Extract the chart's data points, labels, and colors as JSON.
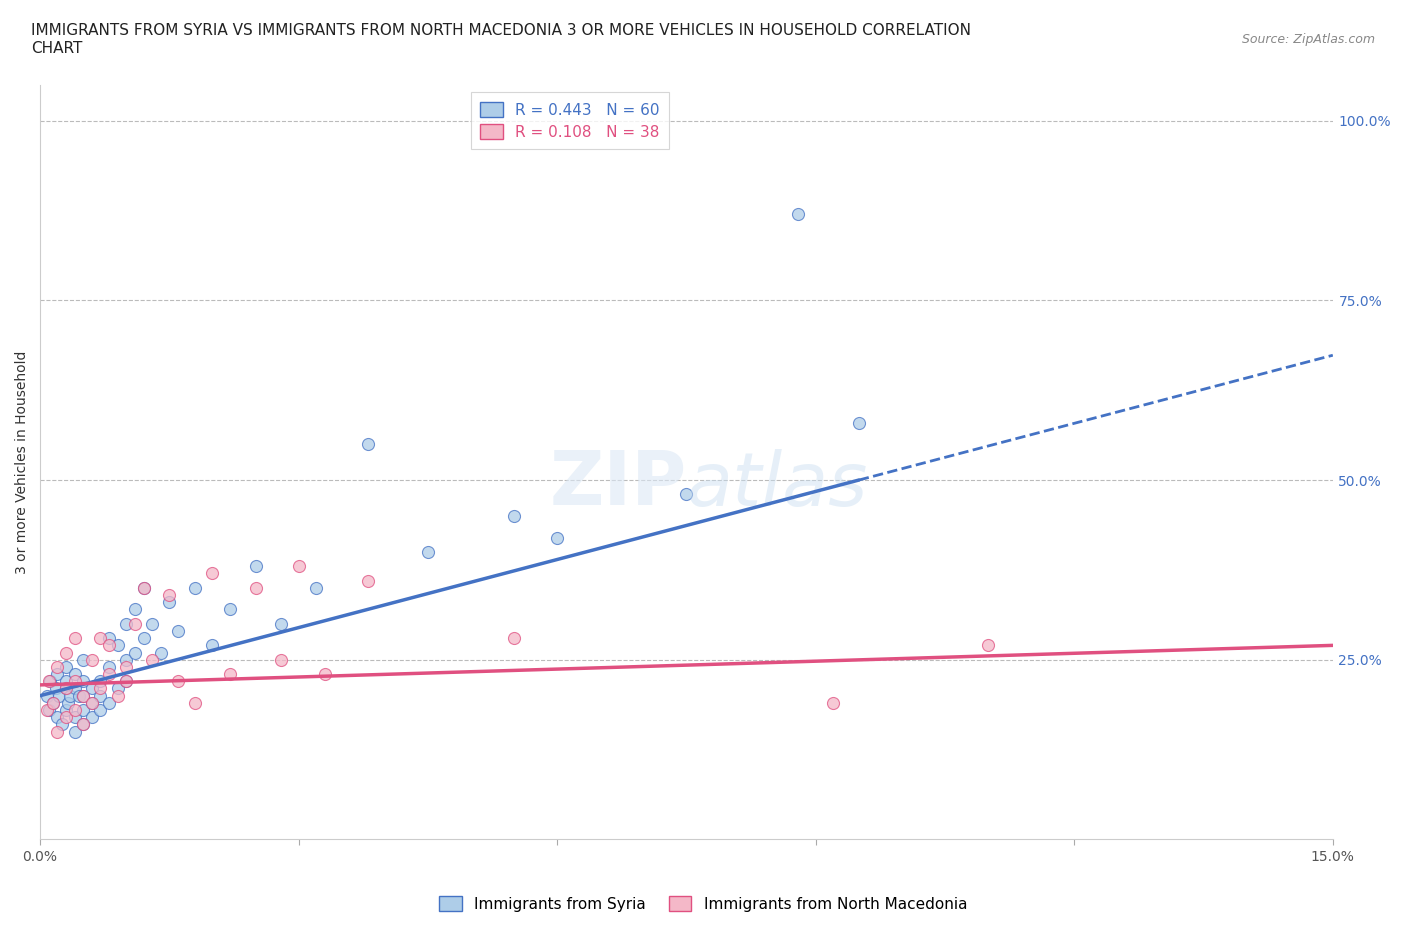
{
  "title": "IMMIGRANTS FROM SYRIA VS IMMIGRANTS FROM NORTH MACEDONIA 3 OR MORE VEHICLES IN HOUSEHOLD CORRELATION\nCHART",
  "source": "Source: ZipAtlas.com",
  "ylabel": "3 or more Vehicles in Household",
  "xlim": [
    0.0,
    0.15
  ],
  "ylim": [
    0.0,
    1.05
  ],
  "xticks": [
    0.0,
    0.03,
    0.06,
    0.09,
    0.12,
    0.15
  ],
  "xticklabels": [
    "0.0%",
    "",
    "",
    "",
    "",
    "15.0%"
  ],
  "yticks_right": [
    0.0,
    0.25,
    0.5,
    0.75,
    1.0
  ],
  "ytick_labels_right": [
    "",
    "25.0%",
    "50.0%",
    "75.0%",
    "100.0%"
  ],
  "hgrid_values": [
    0.25,
    0.5,
    0.75,
    1.0
  ],
  "syria_color": "#aecde8",
  "syria_color_line": "#4472c4",
  "nmacedonia_color": "#f4b8c8",
  "nmacedonia_color_line": "#e05080",
  "R_syria": 0.443,
  "N_syria": 60,
  "R_nmacedonia": 0.108,
  "N_nmacedonia": 38,
  "legend_label_syria": "Immigrants from Syria",
  "legend_label_nmacedonia": "Immigrants from North Macedonia",
  "syria_x": [
    0.0008,
    0.001,
    0.0012,
    0.0015,
    0.0018,
    0.002,
    0.002,
    0.0022,
    0.0025,
    0.003,
    0.003,
    0.003,
    0.003,
    0.0032,
    0.0035,
    0.004,
    0.004,
    0.004,
    0.004,
    0.0045,
    0.005,
    0.005,
    0.005,
    0.005,
    0.005,
    0.006,
    0.006,
    0.006,
    0.007,
    0.007,
    0.007,
    0.008,
    0.008,
    0.008,
    0.009,
    0.009,
    0.01,
    0.01,
    0.01,
    0.011,
    0.011,
    0.012,
    0.012,
    0.013,
    0.014,
    0.015,
    0.016,
    0.018,
    0.02,
    0.022,
    0.025,
    0.028,
    0.032,
    0.038,
    0.045,
    0.055,
    0.06,
    0.075,
    0.088,
    0.095
  ],
  "syria_y": [
    0.2,
    0.18,
    0.22,
    0.19,
    0.21,
    0.17,
    0.23,
    0.2,
    0.16,
    0.18,
    0.21,
    0.22,
    0.24,
    0.19,
    0.2,
    0.15,
    0.17,
    0.21,
    0.23,
    0.2,
    0.16,
    0.18,
    0.2,
    0.22,
    0.25,
    0.17,
    0.19,
    0.21,
    0.18,
    0.22,
    0.2,
    0.19,
    0.24,
    0.28,
    0.21,
    0.27,
    0.22,
    0.25,
    0.3,
    0.26,
    0.32,
    0.28,
    0.35,
    0.3,
    0.26,
    0.33,
    0.29,
    0.35,
    0.27,
    0.32,
    0.38,
    0.3,
    0.35,
    0.55,
    0.4,
    0.45,
    0.42,
    0.48,
    0.87,
    0.58
  ],
  "nmacedonia_x": [
    0.0008,
    0.001,
    0.0015,
    0.002,
    0.002,
    0.003,
    0.003,
    0.003,
    0.004,
    0.004,
    0.004,
    0.005,
    0.005,
    0.006,
    0.006,
    0.007,
    0.007,
    0.008,
    0.008,
    0.009,
    0.01,
    0.01,
    0.011,
    0.012,
    0.013,
    0.015,
    0.016,
    0.018,
    0.02,
    0.022,
    0.025,
    0.028,
    0.03,
    0.033,
    0.038,
    0.055,
    0.092,
    0.11
  ],
  "nmacedonia_y": [
    0.18,
    0.22,
    0.19,
    0.15,
    0.24,
    0.17,
    0.21,
    0.26,
    0.18,
    0.22,
    0.28,
    0.16,
    0.2,
    0.19,
    0.25,
    0.21,
    0.28,
    0.23,
    0.27,
    0.2,
    0.22,
    0.24,
    0.3,
    0.35,
    0.25,
    0.34,
    0.22,
    0.19,
    0.37,
    0.23,
    0.35,
    0.25,
    0.38,
    0.23,
    0.36,
    0.28,
    0.19,
    0.27
  ],
  "title_fontsize": 11,
  "axis_label_fontsize": 10,
  "tick_fontsize": 10,
  "right_tick_color": "#4472c4",
  "bottom_tick_color": "#555555"
}
